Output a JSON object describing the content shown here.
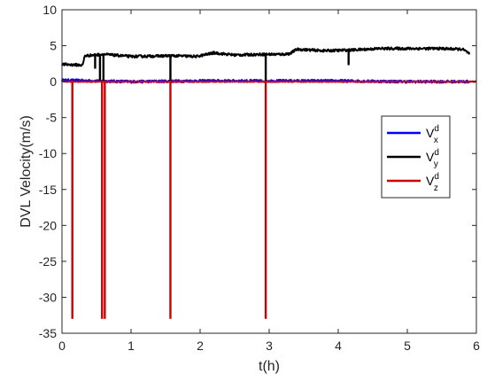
{
  "chart_data": {
    "type": "line",
    "xlabel": "t(h)",
    "ylabel": "DVL Velocity(m/s)",
    "xlim": [
      0,
      6
    ],
    "ylim": [
      -35,
      10
    ],
    "xticks": [
      0,
      1,
      2,
      3,
      4,
      5,
      6
    ],
    "yticks": [
      10,
      5,
      0,
      -5,
      -10,
      -15,
      -20,
      -25,
      -30,
      -35
    ],
    "grid": false,
    "box": true,
    "legend_position": "right",
    "series": [
      {
        "name": "V_x^d",
        "legend_main": "V",
        "legend_sub": "x",
        "legend_sup": "d",
        "color": "#0000ff",
        "baseline": [
          [
            0,
            0.2
          ],
          [
            1,
            0.0
          ],
          [
            2,
            0.1
          ],
          [
            3,
            0.1
          ],
          [
            4,
            0.1
          ],
          [
            5,
            0.0
          ],
          [
            5.9,
            0.0
          ]
        ],
        "noise": 0.35,
        "spikes": []
      },
      {
        "name": "V_y^d",
        "legend_main": "V",
        "legend_sub": "y",
        "legend_sup": "d",
        "color": "#000000",
        "baseline": [
          [
            0,
            2.4
          ],
          [
            0.3,
            2.3
          ],
          [
            0.33,
            3.6
          ],
          [
            0.6,
            3.8
          ],
          [
            1.0,
            3.5
          ],
          [
            1.6,
            3.6
          ],
          [
            1.95,
            3.5
          ],
          [
            2.2,
            4.0
          ],
          [
            2.5,
            3.7
          ],
          [
            2.9,
            3.8
          ],
          [
            3.2,
            3.8
          ],
          [
            3.3,
            3.9
          ],
          [
            3.4,
            4.5
          ],
          [
            3.8,
            4.3
          ],
          [
            4.2,
            4.4
          ],
          [
            4.6,
            4.6
          ],
          [
            5.0,
            4.6
          ],
          [
            5.5,
            4.6
          ],
          [
            5.8,
            4.5
          ],
          [
            5.9,
            3.9
          ]
        ],
        "noise": 0.35,
        "spikes": [
          [
            0.48,
            1.8
          ],
          [
            0.55,
            0.0
          ],
          [
            0.6,
            0.0
          ],
          [
            1.57,
            0.0
          ],
          [
            2.95,
            0.0
          ],
          [
            4.15,
            2.3
          ]
        ]
      },
      {
        "name": "V_z^d",
        "legend_main": "V",
        "legend_sub": "z",
        "legend_sup": "d",
        "color": "#cc0000",
        "baseline": [
          [
            0,
            0.0
          ],
          [
            6.0,
            0.0
          ]
        ],
        "noise": 0.12,
        "spikes": [
          [
            0.15,
            -33
          ],
          [
            0.58,
            -33
          ],
          [
            0.62,
            -33
          ],
          [
            1.57,
            -33
          ],
          [
            2.95,
            -33
          ]
        ]
      }
    ]
  }
}
